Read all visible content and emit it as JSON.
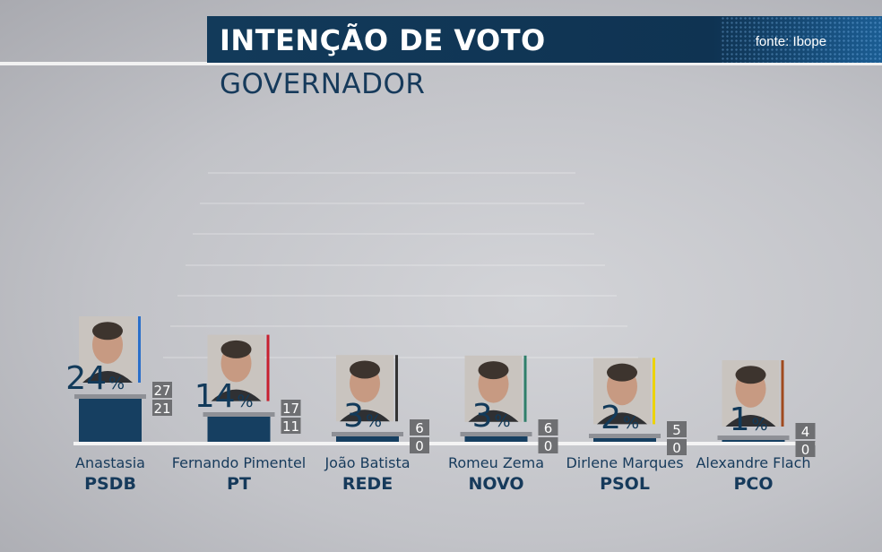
{
  "header": {
    "title": "INTENÇÃO DE VOTO",
    "source": "fonte: Ibope",
    "subtitle": "GOVERNADOR"
  },
  "colors": {
    "bar": "#163f61",
    "header": "#123a5a",
    "range_box": "#6e6f72"
  },
  "chart_data": {
    "type": "bar",
    "title": "GOVERNADOR",
    "unit": "%",
    "ylim": [
      0,
      30
    ],
    "grid": true,
    "categories": [
      "Anastasia",
      "Fernando Pimentel",
      "João Batista",
      "Romeu Zema",
      "Dirlene Marques",
      "Alexandre Flach"
    ],
    "parties": [
      "PSDB",
      "PT",
      "REDE",
      "NOVO",
      "PSOL",
      "PCO"
    ],
    "values": [
      24,
      14,
      3,
      3,
      2,
      1
    ],
    "upper": [
      27,
      17,
      6,
      6,
      5,
      4
    ],
    "lower": [
      21,
      11,
      0,
      0,
      0,
      0
    ],
    "party_colors": [
      "#2a6fc9",
      "#c8202e",
      "#333333",
      "#2f7f6a",
      "#ecd300",
      "#a04a1f"
    ]
  }
}
